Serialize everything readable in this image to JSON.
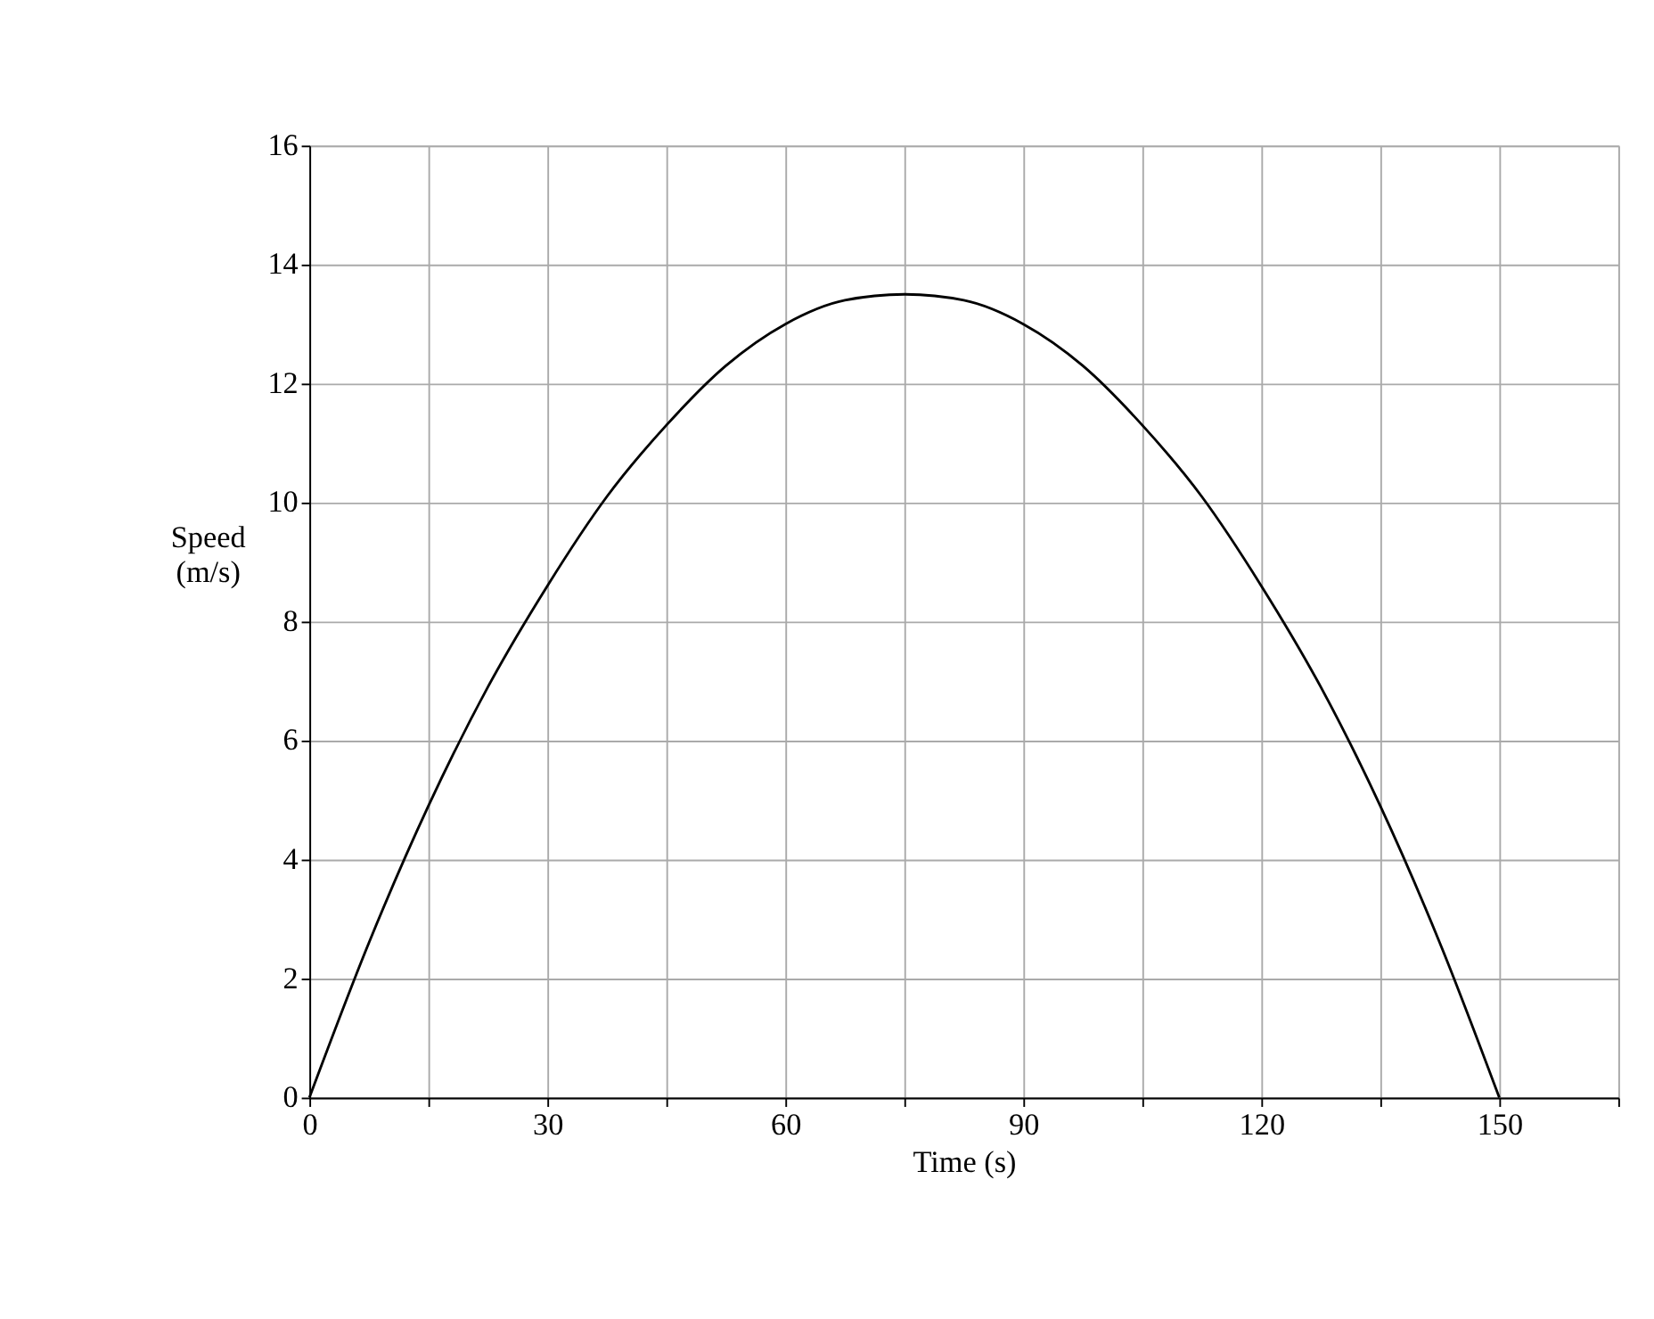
{
  "chart_data": {
    "type": "line",
    "xlabel": "Time (s)",
    "ylabel": "Speed (m/s)",
    "x": [
      0,
      7.5,
      15,
      22.5,
      30,
      37.5,
      45,
      52.5,
      60,
      67.5,
      75,
      82.5,
      90,
      97.5,
      105,
      112.5,
      120,
      127.5,
      135,
      142.5,
      150
    ],
    "series": [
      {
        "color": "#000000",
        "values": [
          0,
          2.6,
          4.9,
          6.9,
          8.6,
          10.1,
          11.3,
          12.3,
          13.0,
          13.4,
          13.5,
          13.4,
          13.0,
          12.3,
          11.3,
          10.1,
          8.6,
          6.9,
          4.9,
          2.6,
          0
        ]
      }
    ],
    "xlim": [
      0,
      165
    ],
    "ylim": [
      0,
      16
    ],
    "xticks": [
      0,
      {
        "value": 15,
        "label": null
      },
      30,
      {
        "value": 45,
        "label": null
      },
      60,
      {
        "value": 75,
        "label": null
      },
      90,
      {
        "value": 105,
        "label": null
      },
      120,
      {
        "value": 135,
        "label": null
      },
      150,
      {
        "value": 165,
        "label": null
      }
    ],
    "yticks": [
      0,
      2,
      4,
      6,
      8,
      10,
      12,
      14,
      16
    ],
    "grid": true,
    "marker": "none",
    "line_style": "solid"
  }
}
